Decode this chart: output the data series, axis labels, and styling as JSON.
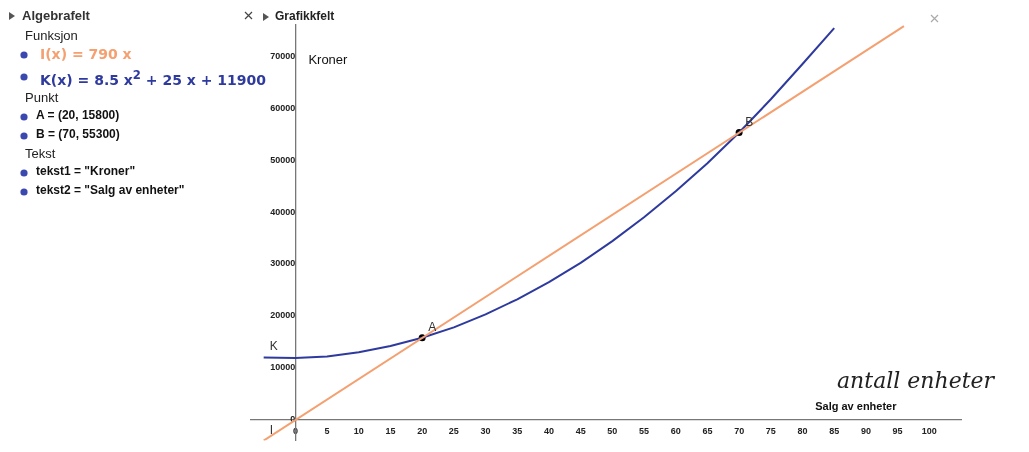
{
  "chart_data": [
    {
      "type": "other",
      "title": "Algebrafelt",
      "annotations": [
        "Funksjon",
        "I(x) = 790 x",
        "K(x) = 8.5 x$^{2}$ + 25 x + 11900",
        "Punkt",
        "A = (20, 15800)",
        "B = (70, 55300)",
        "Tekst",
        "tekst1 = \"Kroner\"",
        "tekst2 = \"Salg av enheter\""
      ]
    },
    {
      "type": "line",
      "title": "Grafikkfelt",
      "ylabel": "Kroner",
      "xlabel": "Salg av enheter",
      "xlim": [
        -7,
        105
      ],
      "ylim": [
        -4000,
        76000
      ],
      "xticks": [
        0,
        5,
        10,
        15,
        20,
        25,
        30,
        35,
        40,
        45,
        50,
        55,
        60,
        65,
        70,
        75,
        80,
        85,
        90,
        95,
        100
      ],
      "yticks": [
        0,
        10000,
        20000,
        30000,
        40000,
        50000,
        60000,
        70000
      ],
      "grid": false,
      "legend": false,
      "marker": "none",
      "line_style": "solid",
      "series": [
        {
          "type": "line",
          "color": "#f4a070",
          "x": [
            -5,
            96
          ],
          "values": [
            -4000,
            75800
          ]
        },
        {
          "type": "line",
          "color": "#2e3a9e",
          "x": [
            -5,
            0,
            5,
            10,
            15,
            20,
            25,
            30,
            35,
            40,
            45,
            50,
            55,
            60,
            65,
            70,
            75,
            80,
            85
          ],
          "values": [
            12000,
            11900,
            12200,
            13000,
            14200,
            15800,
            17800,
            20300,
            23200,
            26500,
            30200,
            34400,
            39000,
            44000,
            49400,
            55300,
            61700,
            68500,
            75400
          ]
        },
        {
          "type": "scatter",
          "color": "#000000",
          "marker": "circle",
          "x": [
            20,
            70
          ],
          "values": [
            15800,
            55300
          ]
        }
      ],
      "annotations": [
        {
          "text": "A",
          "x": 20,
          "y": 15800
        },
        {
          "text": "B",
          "x": 70,
          "y": 55300
        },
        {
          "text": "K",
          "x": -5,
          "y": 12000
        },
        {
          "text": "I",
          "x": -5,
          "y": -4000
        },
        "antall enheter"
      ]
    }
  ]
}
